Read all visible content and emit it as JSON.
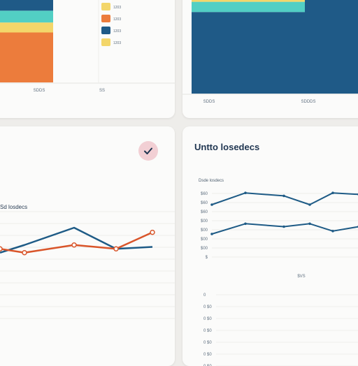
{
  "colors": {
    "orange": "#ec7c3c",
    "yellow": "#f3d66a",
    "teal": "#52cfc4",
    "navy": "#1f5a87",
    "line_navy": "#1e5b86",
    "line_red": "#d9552a",
    "badge_bg": "#f2cfd4"
  },
  "top_right_header": {
    "icon": "check-icon"
  },
  "chart_data": [
    {
      "type": "bar",
      "stacked": true,
      "categories": [
        "SDDS"
      ],
      "series": [
        {
          "color": "#ec7c3c",
          "values": [
            0.55
          ]
        },
        {
          "color": "#f3d66a",
          "values": [
            0.11
          ]
        },
        {
          "color": "#52cfc4",
          "values": [
            0.13
          ]
        },
        {
          "color": "#1f5a87",
          "values": [
            0.21
          ]
        }
      ],
      "legend": {
        "placement": "right",
        "entries": [
          {
            "label": "1203",
            "color": "#f3d66a"
          },
          {
            "label": "1203",
            "color": "#ec7c3c"
          },
          {
            "label": "1203",
            "color": "#1f5a87"
          },
          {
            "label": "1203",
            "color": "#f3d66a"
          }
        ]
      },
      "xlabels": [
        "SDDS",
        "SS"
      ]
    },
    {
      "type": "bar",
      "stacked": true,
      "categories": [
        "SDDS"
      ],
      "series": [
        {
          "color": "#1f5a87",
          "values": [
            0.8
          ]
        },
        {
          "color": "#52cfc4",
          "values": [
            0.1
          ]
        },
        {
          "color": "#f3d66a",
          "values": [
            0.1
          ]
        }
      ],
      "xlabels": [
        "SDDS",
        "SDDDS"
      ]
    },
    {
      "type": "line",
      "title": "Sd losdecs",
      "x": [
        0,
        1,
        2,
        3,
        4
      ],
      "series": [
        {
          "color": "#1e5b86",
          "values": [
            0.35,
            0.55,
            1.0,
            0.45,
            0.5
          ]
        },
        {
          "color": "#d9552a",
          "values": [
            0.45,
            0.35,
            0.55,
            0.45,
            0.88
          ]
        }
      ],
      "points": [
        {
          "x": 0,
          "y": 0.45
        },
        {
          "x": 1,
          "y": 0.35
        },
        {
          "x": 2,
          "y": 1.0
        },
        {
          "x": 3,
          "y": 0.45
        },
        {
          "x": 4,
          "y": 0.88
        }
      ],
      "grid": true
    },
    {
      "type": "line",
      "title": "Untto losedecs",
      "subtitle": "Dsde losdecs",
      "ylabels": [
        "$60",
        "$60",
        "$60",
        "$00",
        "$00",
        "$00",
        "$00",
        "$"
      ],
      "xlabel": "$VS",
      "series": [
        {
          "color": "#1e5b86",
          "values": [
            40,
            48,
            46,
            40,
            48,
            47,
            40
          ]
        },
        {
          "color": "#1e5b86",
          "values": [
            20,
            27,
            25,
            27,
            22,
            25,
            25
          ]
        }
      ],
      "grid": true,
      "bottom_ticks": [
        "0",
        "0 $0",
        "0 $0",
        "0 $0",
        "0 $0",
        "0 $0",
        "0 $0"
      ]
    }
  ]
}
